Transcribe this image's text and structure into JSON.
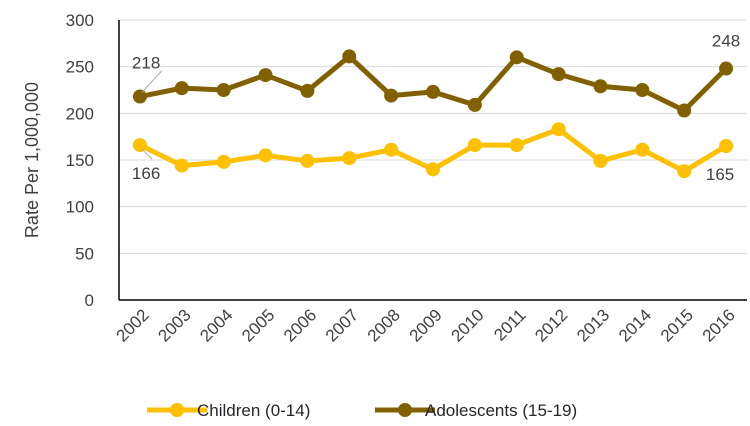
{
  "chart_data": {
    "type": "line",
    "title": "",
    "xlabel": "",
    "ylabel": "Rate Per 1,000,000",
    "ylim": [
      0,
      300
    ],
    "yticks": [
      0,
      50,
      100,
      150,
      200,
      250,
      300
    ],
    "grid": true,
    "legend_position": "bottom",
    "categories": [
      "2002",
      "2003",
      "2004",
      "2005",
      "2006",
      "2007",
      "2008",
      "2009",
      "2010",
      "2011",
      "2012",
      "2013",
      "2014",
      "2015",
      "2016"
    ],
    "series": [
      {
        "name": "Children (0-14)",
        "color": "#FFC000",
        "values": [
          166,
          144,
          148,
          155,
          149,
          152,
          161,
          140,
          166,
          166,
          183,
          149,
          161,
          138,
          165
        ],
        "labels": {
          "first": "166",
          "last": "165"
        }
      },
      {
        "name": "Adolescents (15-19)",
        "color": "#806000",
        "values": [
          218,
          227,
          225,
          241,
          224,
          261,
          219,
          223,
          209,
          260,
          242,
          229,
          225,
          203,
          248
        ],
        "labels": {
          "first": "218",
          "last": "248"
        }
      }
    ]
  }
}
